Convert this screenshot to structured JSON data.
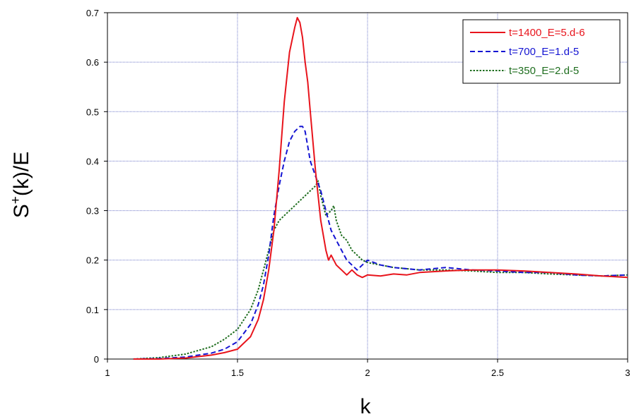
{
  "chart_data": {
    "type": "line",
    "title": "",
    "xlabel": "k",
    "ylabel_main": "S",
    "ylabel_sup": "+",
    "ylabel_rest": "(k)/E",
    "xlim": [
      1,
      3
    ],
    "ylim": [
      0,
      0.7
    ],
    "xticks": [
      1,
      1.5,
      2,
      2.5,
      3
    ],
    "xtick_labels": [
      "1",
      "1.5",
      "2",
      "2.5",
      "3"
    ],
    "yticks": [
      0,
      0.1,
      0.2,
      0.3,
      0.4,
      0.5,
      0.6,
      0.7
    ],
    "ytick_labels": [
      "0",
      "0.1",
      "0.2",
      "0.3",
      "0.4",
      "0.5",
      "0.6",
      "0.7"
    ],
    "grid": true,
    "legend_position": "top-right",
    "series": [
      {
        "name": "t=1400_E=5.d-6",
        "color": "#e8141c",
        "dash": "solid",
        "x": [
          1.1,
          1.2,
          1.3,
          1.4,
          1.45,
          1.5,
          1.55,
          1.58,
          1.6,
          1.62,
          1.64,
          1.66,
          1.68,
          1.7,
          1.72,
          1.73,
          1.74,
          1.75,
          1.76,
          1.77,
          1.78,
          1.8,
          1.82,
          1.84,
          1.85,
          1.86,
          1.88,
          1.9,
          1.92,
          1.94,
          1.96,
          1.98,
          2.0,
          2.05,
          2.1,
          2.15,
          2.2,
          2.3,
          2.4,
          2.5,
          2.6,
          2.7,
          2.8,
          2.9,
          3.0
        ],
        "y": [
          0.0,
          0.0,
          0.002,
          0.008,
          0.013,
          0.02,
          0.045,
          0.08,
          0.12,
          0.18,
          0.26,
          0.38,
          0.52,
          0.62,
          0.67,
          0.69,
          0.68,
          0.65,
          0.6,
          0.56,
          0.5,
          0.38,
          0.28,
          0.22,
          0.2,
          0.21,
          0.19,
          0.18,
          0.17,
          0.18,
          0.17,
          0.165,
          0.17,
          0.168,
          0.172,
          0.17,
          0.175,
          0.178,
          0.18,
          0.18,
          0.178,
          0.175,
          0.172,
          0.168,
          0.165
        ]
      },
      {
        "name": "t=700_E=1.d-5",
        "color": "#1414d2",
        "dash": "dashed",
        "x": [
          1.1,
          1.2,
          1.3,
          1.4,
          1.45,
          1.5,
          1.55,
          1.58,
          1.6,
          1.62,
          1.64,
          1.66,
          1.68,
          1.7,
          1.72,
          1.74,
          1.75,
          1.76,
          1.77,
          1.78,
          1.8,
          1.82,
          1.84,
          1.86,
          1.88,
          1.9,
          1.92,
          1.94,
          1.96,
          1.98,
          2.0,
          2.05,
          2.1,
          2.2,
          2.3,
          2.4,
          2.5,
          2.6,
          2.7,
          2.8,
          2.9,
          3.0
        ],
        "y": [
          0.0,
          0.001,
          0.004,
          0.012,
          0.02,
          0.035,
          0.07,
          0.11,
          0.15,
          0.21,
          0.29,
          0.35,
          0.4,
          0.44,
          0.46,
          0.47,
          0.47,
          0.46,
          0.43,
          0.4,
          0.37,
          0.34,
          0.3,
          0.26,
          0.24,
          0.22,
          0.2,
          0.19,
          0.18,
          0.19,
          0.2,
          0.19,
          0.185,
          0.18,
          0.185,
          0.18,
          0.178,
          0.175,
          0.175,
          0.17,
          0.168,
          0.17
        ]
      },
      {
        "name": "t=350_E=2.d-5",
        "color": "#1f6e1f",
        "dash": "dotted",
        "x": [
          1.1,
          1.2,
          1.3,
          1.4,
          1.45,
          1.5,
          1.55,
          1.58,
          1.6,
          1.62,
          1.64,
          1.66,
          1.68,
          1.7,
          1.72,
          1.74,
          1.76,
          1.78,
          1.8,
          1.81,
          1.82,
          1.84,
          1.86,
          1.87,
          1.88,
          1.9,
          1.92,
          1.94,
          1.96,
          1.98,
          2.0,
          2.05,
          2.1,
          2.2,
          2.3,
          2.4,
          2.5,
          2.6,
          2.7,
          2.8,
          2.9,
          3.0
        ],
        "y": [
          0.0,
          0.003,
          0.01,
          0.025,
          0.04,
          0.06,
          0.1,
          0.14,
          0.18,
          0.22,
          0.26,
          0.28,
          0.29,
          0.3,
          0.31,
          0.32,
          0.33,
          0.34,
          0.35,
          0.36,
          0.33,
          0.29,
          0.3,
          0.31,
          0.28,
          0.25,
          0.24,
          0.22,
          0.21,
          0.2,
          0.195,
          0.19,
          0.185,
          0.18,
          0.18,
          0.178,
          0.175,
          0.175,
          0.172,
          0.17,
          0.168,
          0.17
        ]
      }
    ]
  }
}
